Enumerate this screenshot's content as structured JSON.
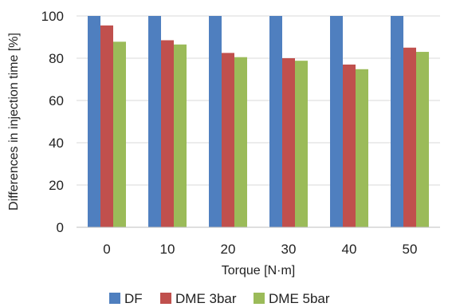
{
  "chart_data": {
    "type": "bar",
    "title": "",
    "xlabel": "Torque [N·m]",
    "ylabel": "Differences in injection time [%]",
    "categories": [
      "0",
      "10",
      "20",
      "30",
      "40",
      "50"
    ],
    "series": [
      {
        "name": "DF",
        "color": "#4f7fbf",
        "values": [
          100,
          100,
          100,
          100,
          100,
          100
        ]
      },
      {
        "name": "DME 3bar",
        "color": "#c0504d",
        "values": [
          95.5,
          88.5,
          82.5,
          80,
          77,
          85
        ]
      },
      {
        "name": "DME 5bar",
        "color": "#9bbb59",
        "values": [
          87.8,
          86.5,
          80.5,
          78.8,
          74.8,
          83
        ]
      }
    ],
    "ylim": [
      0,
      100
    ],
    "yticks": [
      0,
      20,
      40,
      60,
      80,
      100
    ],
    "grid": "horizontal",
    "legend": "bottom"
  }
}
